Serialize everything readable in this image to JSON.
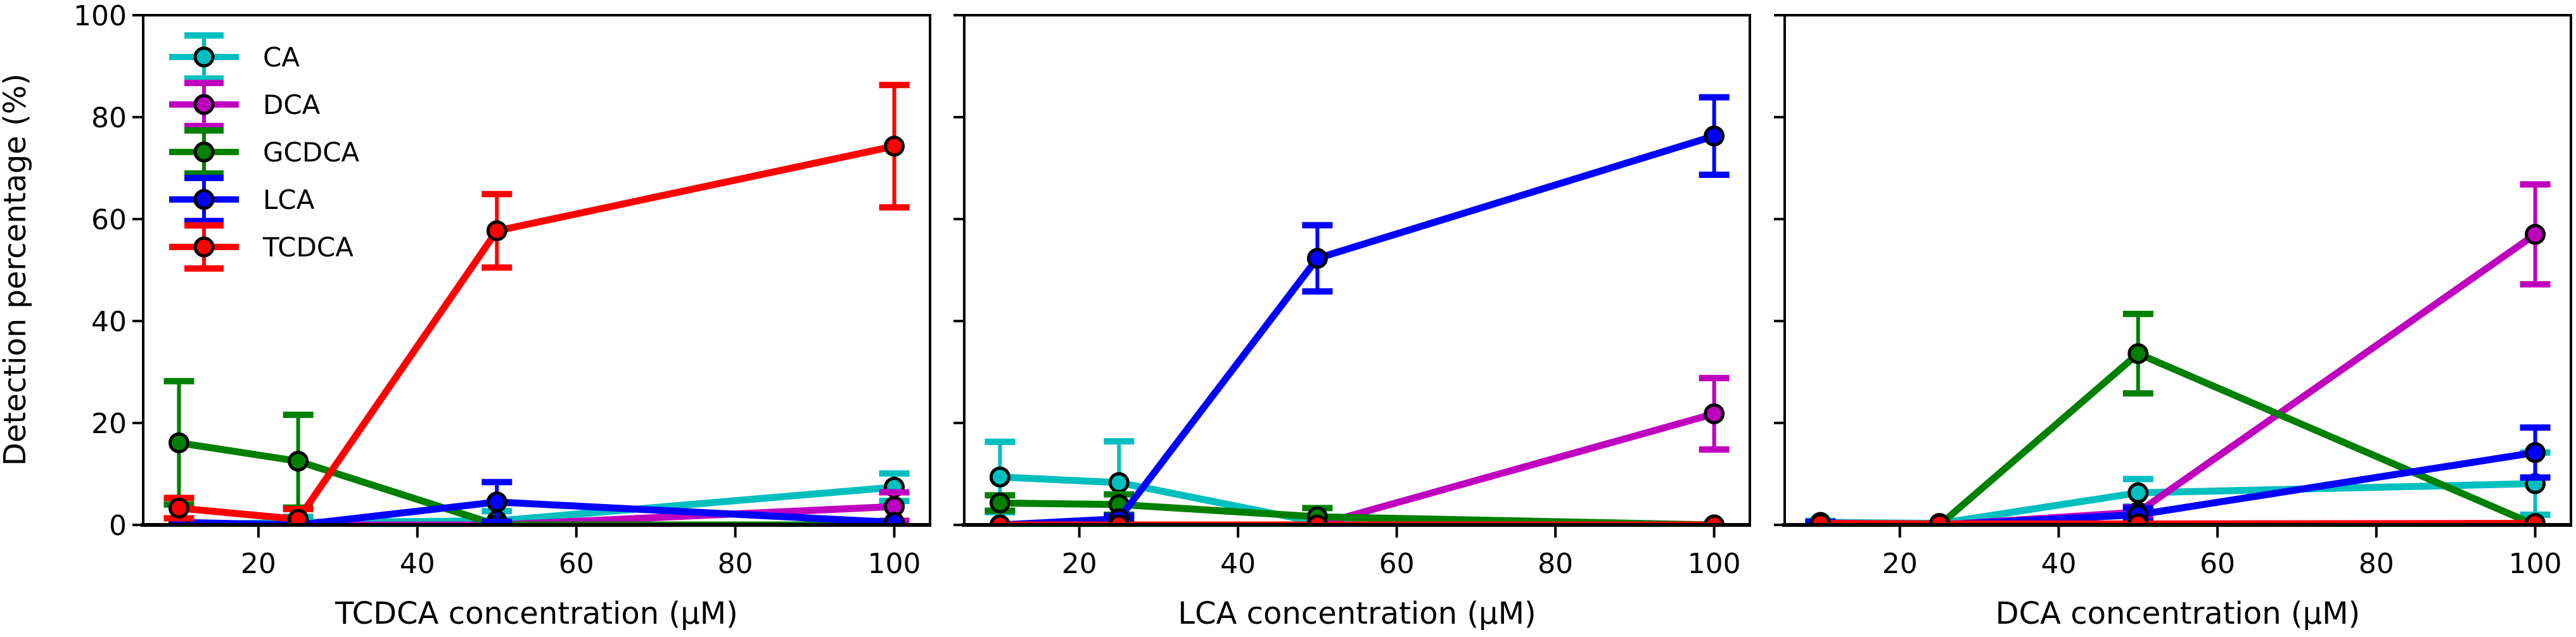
{
  "chart_data": {
    "type": "line",
    "ylabel": "Detection percentage (%)",
    "ylim": [
      0,
      100
    ],
    "yticks": [
      0,
      20,
      40,
      60,
      80,
      100
    ],
    "xticks": [
      20,
      40,
      60,
      80,
      100
    ],
    "xlim": [
      5.5,
      104.5
    ],
    "x": [
      10,
      25,
      50,
      100
    ],
    "grid": false,
    "legend": {
      "placement": "top-left",
      "panel": 0,
      "entries": [
        "CA",
        "DCA",
        "GCDCA",
        "LCA",
        "TCDCA"
      ]
    },
    "series_colors": {
      "CA": "#00bfbf",
      "DCA": "#bf00bf",
      "GCDCA": "#008000",
      "LCA": "#0000ff",
      "TCDCA": "#ff0000"
    },
    "marker_edge_color": "#000000",
    "panels": [
      {
        "xlabel": "TCDCA concentration (µM)",
        "series": [
          {
            "name": "CA",
            "values": [
              0.0,
              0.5,
              0.8,
              7.4
            ],
            "errors": [
              0.0,
              1.1,
              1.9,
              2.7
            ]
          },
          {
            "name": "DCA",
            "values": [
              0.0,
              0.0,
              0.0,
              3.6
            ],
            "errors": [
              0.0,
              0.0,
              0.0,
              2.8
            ]
          },
          {
            "name": "GCDCA",
            "values": [
              16.1,
              12.5,
              0.0,
              0.0
            ],
            "errors": [
              12.1,
              9.1,
              0.0,
              0.0
            ]
          },
          {
            "name": "LCA",
            "values": [
              0.5,
              0.0,
              4.5,
              0.5
            ],
            "errors": [
              0.0,
              0.0,
              3.9,
              0.0
            ]
          },
          {
            "name": "TCDCA",
            "values": [
              3.3,
              1.1,
              57.7,
              74.3
            ],
            "errors": [
              2.0,
              2.0,
              7.2,
              12.0
            ]
          }
        ]
      },
      {
        "xlabel": "LCA concentration (µM)",
        "series": [
          {
            "name": "CA",
            "values": [
              9.4,
              8.3,
              0.5,
              0.0
            ],
            "errors": [
              6.9,
              8.1,
              0.0,
              0.0
            ]
          },
          {
            "name": "DCA",
            "values": [
              0.0,
              0.0,
              0.0,
              21.8
            ],
            "errors": [
              0.0,
              0.0,
              0.0,
              7.0
            ]
          },
          {
            "name": "GCDCA",
            "values": [
              4.3,
              4.0,
              1.6,
              0.0
            ],
            "errors": [
              1.5,
              2.0,
              1.7,
              0.0
            ]
          },
          {
            "name": "LCA",
            "values": [
              0.0,
              1.2,
              52.3,
              76.3
            ],
            "errors": [
              0.0,
              0.6,
              6.5,
              7.6
            ]
          },
          {
            "name": "TCDCA",
            "values": [
              0.0,
              0.0,
              0.0,
              0.0
            ],
            "errors": [
              0.0,
              0.0,
              0.0,
              0.0
            ]
          }
        ]
      },
      {
        "xlabel": "DCA concentration (µM)",
        "series": [
          {
            "name": "CA",
            "values": [
              0.5,
              0.3,
              6.3,
              8.1
            ],
            "errors": [
              0.3,
              0.0,
              2.7,
              6.1
            ]
          },
          {
            "name": "DCA",
            "values": [
              0.3,
              0.0,
              2.5,
              57.0
            ],
            "errors": [
              0.0,
              0.0,
              1.0,
              9.8
            ]
          },
          {
            "name": "GCDCA",
            "values": [
              0.3,
              0.0,
              33.6,
              0.0
            ],
            "errors": [
              0.0,
              0.0,
              7.8,
              0.0
            ]
          },
          {
            "name": "LCA",
            "values": [
              0.4,
              0.0,
              2.0,
              14.2
            ],
            "errors": [
              0.2,
              0.0,
              1.3,
              4.9
            ]
          },
          {
            "name": "TCDCA",
            "values": [
              0.3,
              0.2,
              0.2,
              0.3
            ],
            "errors": [
              0.0,
              0.0,
              0.0,
              0.0
            ]
          }
        ]
      }
    ]
  }
}
